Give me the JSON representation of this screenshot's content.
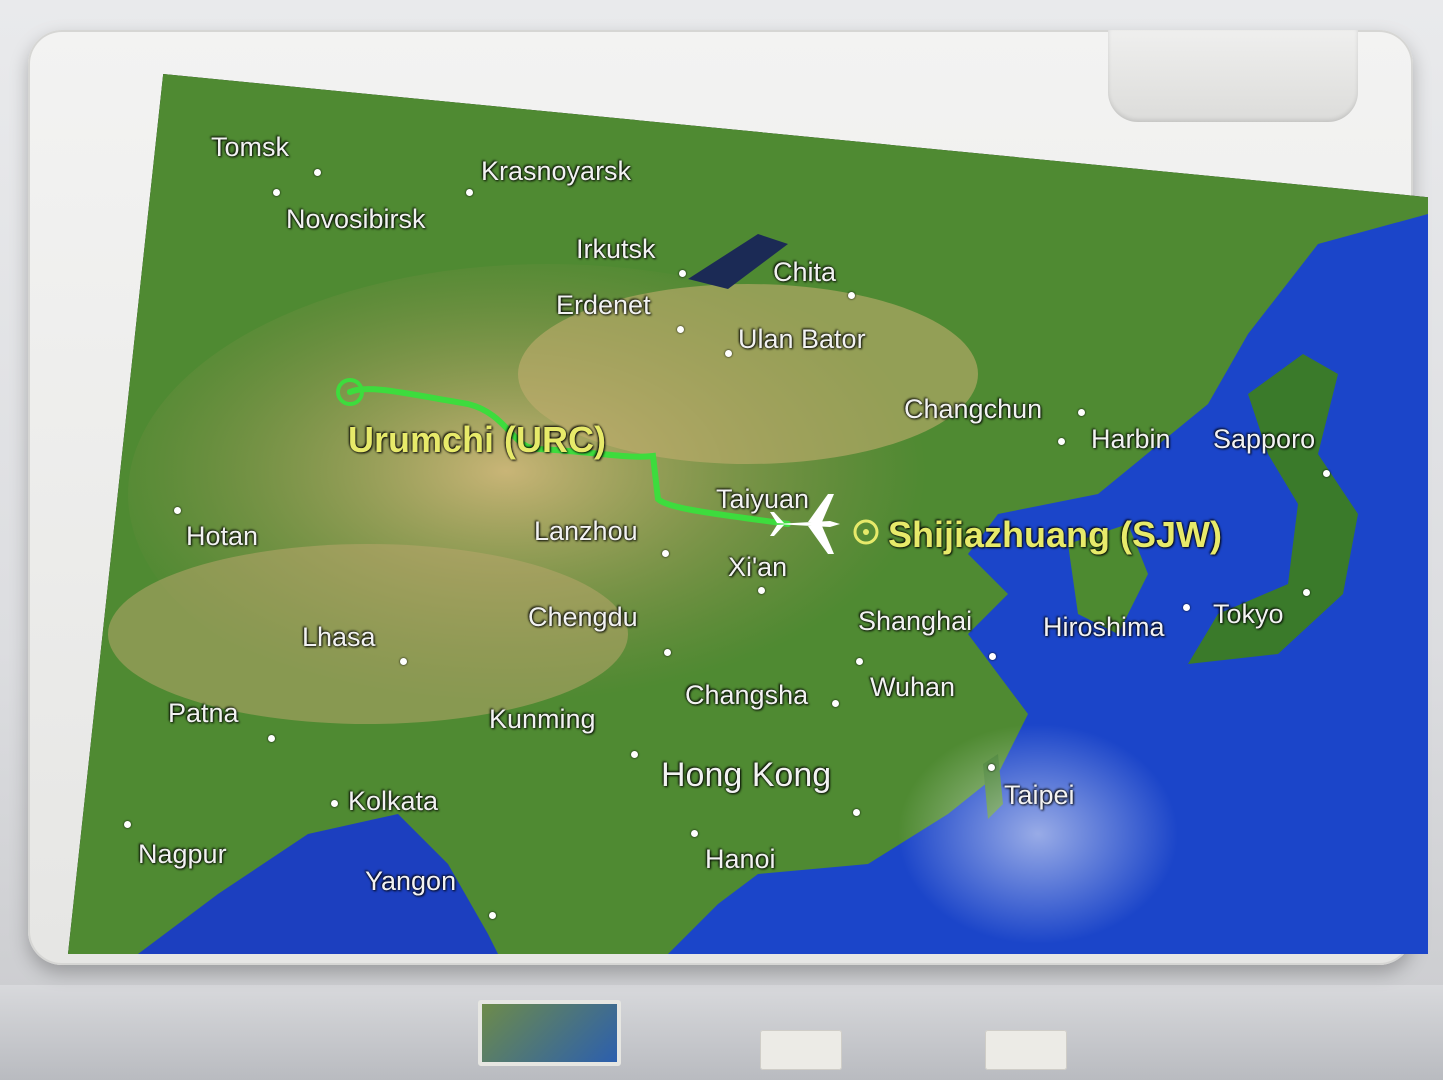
{
  "flight": {
    "origin_label": "Urumchi (URC)",
    "destination_label": "Shijiazhuang (SJW)"
  },
  "colors": {
    "route": "#3ddc3d",
    "route_label": "#e7ea6a",
    "ocean": "#1b45c9",
    "land": "#5d8d34"
  },
  "cities": [
    {
      "id": "tomsk",
      "label": "Tomsk"
    },
    {
      "id": "krasnoyarsk",
      "label": "Krasnoyarsk"
    },
    {
      "id": "novosibirsk",
      "label": "Novosibirsk"
    },
    {
      "id": "irkutsk",
      "label": "Irkutsk"
    },
    {
      "id": "chita",
      "label": "Chita"
    },
    {
      "id": "erdenet",
      "label": "Erdenet"
    },
    {
      "id": "ulan-bator",
      "label": "Ulan Bator"
    },
    {
      "id": "changchun",
      "label": "Changchun"
    },
    {
      "id": "harbin",
      "label": "Harbin"
    },
    {
      "id": "sapporo",
      "label": "Sapporo"
    },
    {
      "id": "taiyuan",
      "label": "Taiyuan"
    },
    {
      "id": "hotan",
      "label": "Hotan"
    },
    {
      "id": "lanzhou",
      "label": "Lanzhou"
    },
    {
      "id": "xian",
      "label": "Xi'an"
    },
    {
      "id": "chengdu",
      "label": "Chengdu"
    },
    {
      "id": "shanghai",
      "label": "Shanghai"
    },
    {
      "id": "hiroshima",
      "label": "Hiroshima"
    },
    {
      "id": "tokyo",
      "label": "Tokyo"
    },
    {
      "id": "lhasa",
      "label": "Lhasa"
    },
    {
      "id": "changsha",
      "label": "Changsha"
    },
    {
      "id": "wuhan",
      "label": "Wuhan"
    },
    {
      "id": "patna",
      "label": "Patna"
    },
    {
      "id": "kunming",
      "label": "Kunming"
    },
    {
      "id": "hong-kong",
      "label": "Hong Kong"
    },
    {
      "id": "kolkata",
      "label": "Kolkata"
    },
    {
      "id": "taipei",
      "label": "Taipei"
    },
    {
      "id": "nagpur",
      "label": "Nagpur"
    },
    {
      "id": "hanoi",
      "label": "Hanoi"
    },
    {
      "id": "yangon",
      "label": "Yangon"
    }
  ],
  "icons": {
    "aircraft": "airplane-icon",
    "origin": "origin-marker-icon",
    "destination": "destination-marker-icon"
  }
}
